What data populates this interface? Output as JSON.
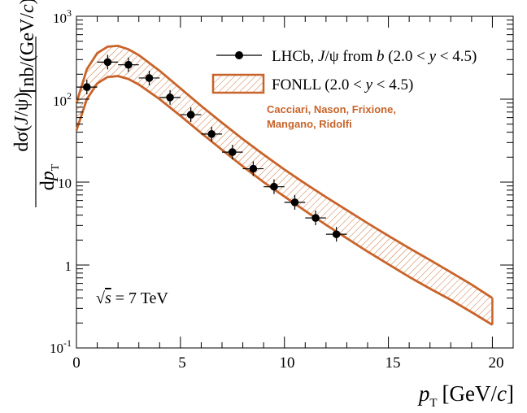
{
  "chart_data": {
    "type": "scatter",
    "title": "",
    "xlabel": "p_T [GeV/c]",
    "ylabel": "dσ(J/ψ)/dp_T [nb/(GeV/c)]",
    "xlim": [
      0,
      21
    ],
    "ylim": [
      0.1,
      1000
    ],
    "yscale": "log",
    "x_ticks": [
      "0",
      "5",
      "10",
      "15",
      "20"
    ],
    "y_ticks": [
      "10-1",
      "1",
      "10",
      "102",
      "103"
    ],
    "series": [
      {
        "name": "LHCb, J/ψ from b (2.0 < y < 4.5)",
        "kind": "points",
        "x": [
          0.5,
          1.5,
          2.5,
          3.5,
          4.5,
          5.5,
          6.5,
          7.5,
          8.5,
          9.5,
          10.5,
          11.5,
          12.5
        ],
        "y": [
          140,
          280,
          260,
          180,
          105,
          65,
          38,
          23,
          14.5,
          8.8,
          5.7,
          3.7,
          2.35
        ],
        "x_err": 0.5
      },
      {
        "name": "FONLL (2.0 < y < 4.5)",
        "kind": "band",
        "x": [
          0,
          0.5,
          1,
          1.5,
          2,
          2.5,
          3,
          4,
          5,
          6,
          7,
          8,
          9,
          10,
          11,
          12,
          13,
          14,
          15,
          16,
          17,
          18,
          19,
          20
        ],
        "upper": [
          90,
          230,
          360,
          430,
          440,
          400,
          340,
          220,
          135,
          83,
          52,
          33,
          21.5,
          14.2,
          9.6,
          6.6,
          4.6,
          3.2,
          2.25,
          1.6,
          1.15,
          0.82,
          0.58,
          0.4
        ],
        "lower": [
          42,
          100,
          155,
          185,
          190,
          175,
          150,
          100,
          63,
          39,
          24.5,
          15.5,
          10,
          6.7,
          4.5,
          3.05,
          2.1,
          1.45,
          1.02,
          0.72,
          0.52,
          0.38,
          0.27,
          0.19
        ]
      }
    ],
    "legend": [
      {
        "label_main": "LHCb,",
        "label_rest": "J/ψ from b (2.0 < y < 4.5)"
      },
      {
        "label_main": "FONLL (2.0 < y < 4.5)"
      }
    ],
    "annotations": {
      "credit_line1": "Cacciari, Nason, Frixione,",
      "credit_line2": "Mangano, Ridolfi",
      "energy": "√s = 7 TeV"
    },
    "colors": {
      "band": "#c8642a",
      "points": "#000000"
    }
  }
}
